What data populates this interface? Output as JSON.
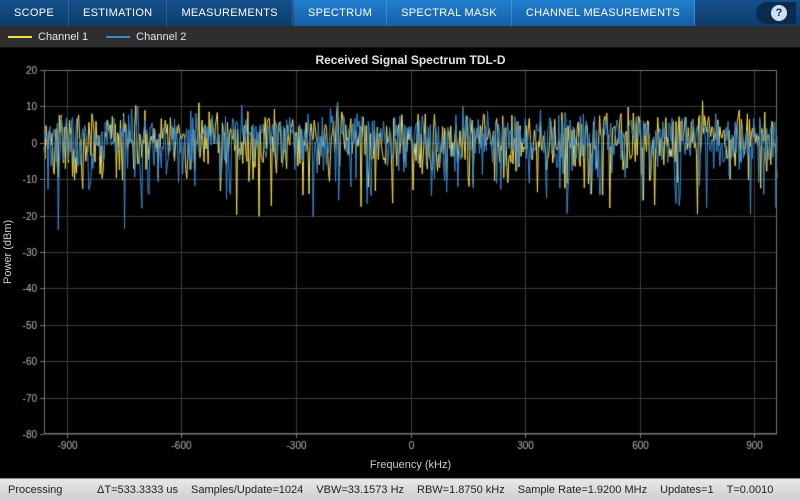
{
  "tab_bar": {
    "tabs": [
      {
        "label": "SCOPE"
      },
      {
        "label": "ESTIMATION"
      },
      {
        "label": "MEASUREMENTS"
      }
    ],
    "contextual_tabs": [
      {
        "label": "SPECTRUM"
      },
      {
        "label": "SPECTRAL MASK"
      },
      {
        "label": "CHANNEL MEASUREMENTS"
      }
    ],
    "help_label": "?"
  },
  "legend": {
    "items": [
      {
        "label": "Channel 1",
        "color": "#f5dc4e"
      },
      {
        "label": "Channel 2",
        "color": "#3a8ad1"
      }
    ]
  },
  "chart_data": {
    "type": "line",
    "title": "Received Signal Spectrum TDL-D",
    "xlabel": "Frequency (kHz)",
    "ylabel": "Power (dBm)",
    "x_range": [
      -960,
      960
    ],
    "y_range": [
      -80,
      20
    ],
    "x_ticks": [
      -900,
      -600,
      -300,
      0,
      300,
      600,
      900
    ],
    "y_ticks": [
      20,
      10,
      0,
      -10,
      -20,
      -30,
      -40,
      -50,
      -60,
      -70,
      -80
    ],
    "grid": true,
    "legend_position": "top-left-bar",
    "plot": {
      "bg": "#000000",
      "grid_color": "#3d3d3d",
      "box_color": "#767676",
      "tick_label_color": "#b8b8b8"
    },
    "series": [
      {
        "name": "Channel 1",
        "color": "#f5dc4e",
        "description": "White-noise-like periodogram hovering near 0 dBm, peaks to about +13 dBm, occasional dips to about -30 dBm",
        "noise": {
          "seed": 777001,
          "points": 720,
          "offset_db": 2.2
        }
      },
      {
        "name": "Channel 2",
        "color": "#3a8ad1",
        "description": "White-noise-like periodogram hovering near 0 dBm, peaks to about +15 dBm, occasional dips to about -28 dBm",
        "noise": {
          "seed": 424243,
          "points": 720,
          "offset_db": 2.6
        }
      }
    ]
  },
  "status_bar": {
    "state": "Processing",
    "items": [
      "ΔT=533.3333 us",
      "Samples/Update=1024",
      "VBW=33.1573 Hz",
      "RBW=1.8750 kHz",
      "Sample Rate=1.9200 MHz",
      "Updates=1",
      "T=0.0010"
    ]
  }
}
